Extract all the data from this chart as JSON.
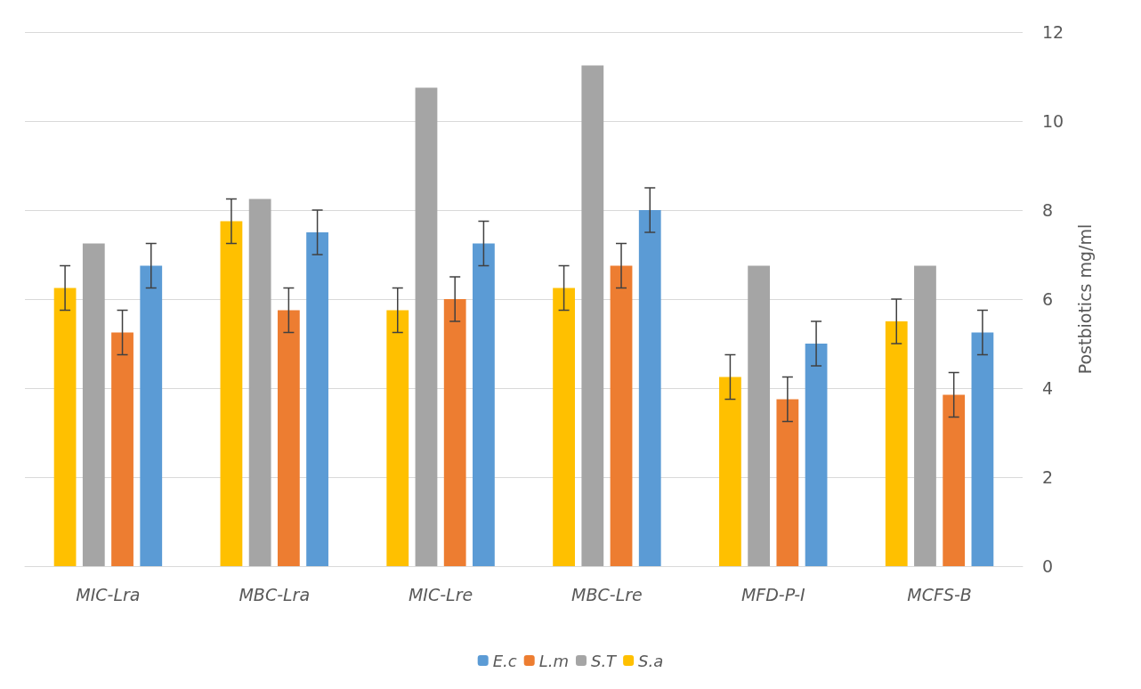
{
  "chart_data": {
    "type": "bar",
    "ylabel": "Postbiotics mg/ml",
    "categories": [
      "MIC-Lra",
      "MBC-Lra",
      "MIC-Lre",
      "MBC-Lre",
      "MFD-P-I",
      "MCFS-B"
    ],
    "series": [
      {
        "name": "S.a",
        "color": "#ffc000",
        "values": [
          6.25,
          7.75,
          5.75,
          6.25,
          4.25,
          5.5
        ],
        "errors": [
          0.5,
          0.5,
          0.5,
          0.5,
          0.5,
          0.5
        ]
      },
      {
        "name": "S.T",
        "color": "#a5a5a5",
        "values": [
          7.25,
          8.25,
          10.75,
          11.25,
          6.75,
          6.75
        ]
      },
      {
        "name": "L.m",
        "color": "#ed7d31",
        "values": [
          5.25,
          5.75,
          6,
          6.75,
          3.75,
          3.85
        ],
        "errors": [
          0.5,
          0.5,
          0.5,
          0.5,
          0.5,
          0.5
        ]
      },
      {
        "name": "E.c",
        "color": "#5b9bd5",
        "values": [
          6.75,
          7.5,
          7.25,
          8,
          5,
          5.25
        ],
        "errors": [
          0.5,
          0.5,
          0.5,
          0.5,
          0.5,
          0.5
        ]
      }
    ],
    "ylim": [
      0,
      12
    ],
    "yticks": [
      0,
      2,
      4,
      6,
      8,
      10,
      12
    ],
    "grid": "y",
    "legend": "bottom"
  }
}
